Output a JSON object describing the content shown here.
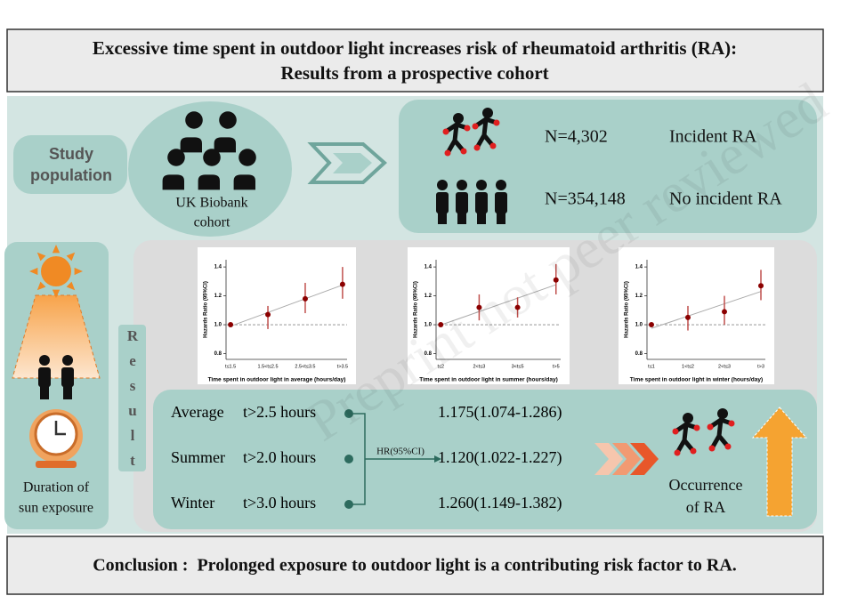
{
  "header": {
    "title_lines": [
      "Excessive time spent in outdoor light increases risk of rheumatoid arthritis (RA):",
      "Results from a prospective cohort"
    ]
  },
  "study": {
    "label_lines": [
      "Study",
      "population"
    ],
    "cohort_lines": [
      "UK Biobank",
      "cohort"
    ],
    "groups": [
      {
        "count": "N=4,302",
        "label": "Incident RA"
      },
      {
        "count": "N=354,148",
        "label": "No incident RA"
      }
    ]
  },
  "exposure": {
    "label_lines": [
      "Duration of",
      "sun exposure"
    ]
  },
  "result_label": "Result",
  "charts": [
    {
      "type": "errorbar",
      "y_label": "Hazards Ratio (95%CI)",
      "x_label": "Time spent in outdoor light in average (hours/day)",
      "categories": [
        "t≤1.5",
        "1.5<t≤2.5",
        "2.5<t≤3.5",
        "t>3.5"
      ],
      "values": [
        1.0,
        1.07,
        1.18,
        1.28
      ],
      "ci": [
        null,
        [
          0.97,
          1.13
        ],
        [
          1.08,
          1.29
        ],
        [
          1.18,
          1.4
        ]
      ],
      "ylim": [
        0.76,
        1.45
      ],
      "yticks": [
        0.8,
        {
          "value": 1.0,
          "label": "1.0"
        },
        1.2,
        1.4
      ],
      "reference": 1.0
    },
    {
      "type": "errorbar",
      "y_label": "Hazards Ratio (95%CI)",
      "x_label": "Time spent in outdoor light in summer (hours/day)",
      "categories": [
        "t≤2",
        "2<t≤3",
        "3<t≤5",
        "t>5"
      ],
      "values": [
        1.0,
        1.12,
        1.12,
        1.31
      ],
      "ci": [
        null,
        [
          1.03,
          1.21
        ],
        [
          1.05,
          1.19
        ],
        [
          1.21,
          1.42
        ]
      ],
      "ylim": [
        0.76,
        1.45
      ],
      "yticks": [
        0.8,
        {
          "value": 1.0,
          "label": "1.0"
        },
        1.2,
        1.4
      ],
      "reference": 1.0
    },
    {
      "type": "errorbar",
      "y_label": "Hazards Ratio (95%CI)",
      "x_label": "Time spent in outdoor light in winter (hours/day)",
      "categories": [
        "t≤1",
        "1<t≤2",
        "2<t≤3",
        "t>3"
      ],
      "values": [
        1.0,
        1.05,
        1.09,
        1.27
      ],
      "ci": [
        null,
        [
          0.96,
          1.13
        ],
        [
          1.0,
          1.2
        ],
        [
          1.17,
          1.38
        ]
      ],
      "ylim": [
        0.76,
        1.45
      ],
      "yticks": [
        0.8,
        {
          "value": 1.0,
          "label": "1.0"
        },
        1.2,
        1.4
      ],
      "reference": 1.0
    }
  ],
  "summary": {
    "hr_label": "HR(95%CI)",
    "rows": [
      {
        "season": "Average",
        "threshold": "t>2.5 hours",
        "hr": "1.175(1.074-1.286)"
      },
      {
        "season": "Summer",
        "threshold": "t>2.0 hours",
        "hr": "1.120(1.022-1.227)"
      },
      {
        "season": "Winter",
        "threshold": "t>3.0 hours",
        "hr": "1.260(1.149-1.382)"
      }
    ]
  },
  "outcome_lines": [
    "Occurrence",
    "of RA"
  ],
  "conclusion": "Conclusion :  Prolonged exposure to outdoor light is a contributing risk factor to RA.",
  "watermark": "Preprint not peer reviewed"
}
